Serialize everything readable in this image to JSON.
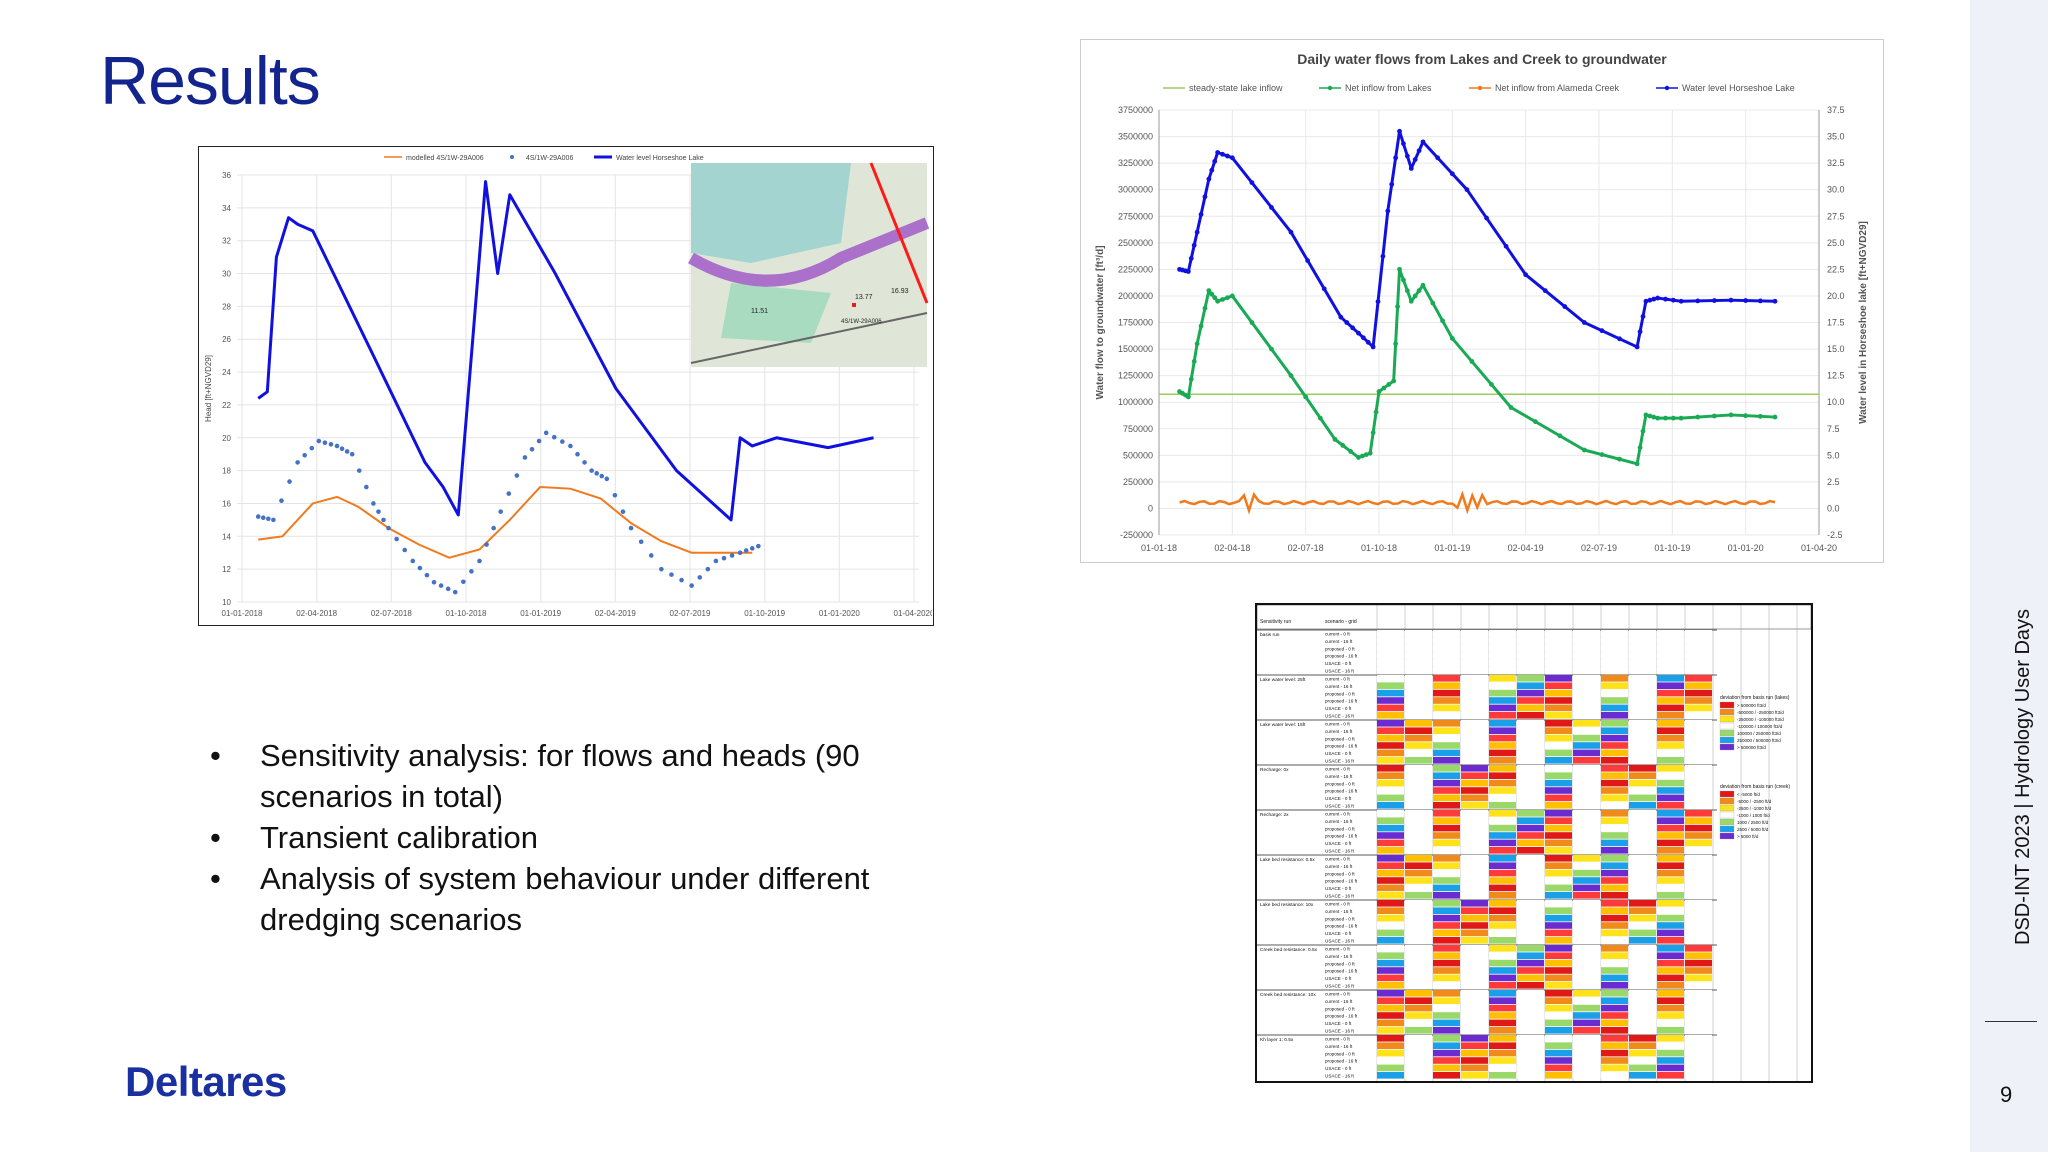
{
  "slide": {
    "title": "Results",
    "page_number": "9",
    "footer_vertical": "DSD-INT 2023 | Hydrology User Days",
    "logo": "Deltares",
    "bullets": [
      "Sensitivity analysis: for flows and heads (90 scenarios in total)",
      "Transient calibration",
      "Analysis of system behaviour under different dredging scenarios"
    ]
  },
  "colors": {
    "title": "#14248f",
    "logo": "#1a2fa0",
    "blue": "#1010e0",
    "green": "#1aaa55",
    "orange": "#f07a1e",
    "lightgreen": "#9acd5a",
    "scatter": "#4472c4"
  },
  "chart_data": [
    {
      "type": "line",
      "legend": [
        "modelled 4S/1W-29A006",
        "4S/1W-29A006",
        "Water level Horseshoe Lake"
      ],
      "ylabel": "Head [ft+NGVD29]",
      "ylim": [
        10,
        36
      ],
      "yticks": [
        "10",
        "12",
        "14",
        "16",
        "18",
        "20",
        "22",
        "24",
        "26",
        "28",
        "30",
        "32",
        "34",
        "36"
      ],
      "xticks": [
        "01-01-2018",
        "02-04-2018",
        "02-07-2018",
        "01-10-2018",
        "01-01-2019",
        "02-04-2019",
        "02-07-2019",
        "01-10-2019",
        "01-01-2020",
        "01-04-2020"
      ],
      "map_labels": [
        "13.77",
        "16.93",
        "11.51",
        "4S/1W-29A006"
      ],
      "series": [
        {
          "name": "Water level Horseshoe Lake",
          "x": [
            0.07,
            0.1,
            0.13,
            0.17,
            0.2,
            0.25,
            0.45,
            0.62,
            0.68,
            0.73,
            0.78,
            0.82,
            0.86,
            0.9,
            1.05,
            1.25,
            1.45,
            1.63,
            1.66,
            1.7,
            1.78,
            1.95,
            2.1
          ],
          "values": [
            22.4,
            22.8,
            31.0,
            33.4,
            33.0,
            32.6,
            25.0,
            18.5,
            17.0,
            15.3,
            26.5,
            35.6,
            30.0,
            34.8,
            30.0,
            23.0,
            18.0,
            15.0,
            20.0,
            19.5,
            20.0,
            19.4,
            20.0
          ]
        },
        {
          "name": "4S/1W-29A006",
          "x": [
            0.07,
            0.12,
            0.2,
            0.27,
            0.33,
            0.38,
            0.45,
            0.5,
            0.58,
            0.65,
            0.72,
            0.8,
            0.87,
            0.95,
            1.02,
            1.1,
            1.17,
            1.22,
            1.3,
            1.4,
            1.5,
            1.58,
            1.66,
            1.72
          ],
          "values": [
            15.2,
            15.0,
            18.5,
            19.8,
            19.5,
            19.0,
            16.0,
            14.5,
            12.5,
            11.2,
            10.6,
            12.5,
            15.5,
            18.8,
            20.3,
            19.5,
            18.0,
            17.5,
            14.5,
            12.0,
            11.0,
            12.5,
            13.0,
            13.4
          ]
        },
        {
          "name": "modelled 4S/1W-29A006",
          "x": [
            0.07,
            0.15,
            0.25,
            0.33,
            0.4,
            0.5,
            0.6,
            0.7,
            0.8,
            0.9,
            1.0,
            1.1,
            1.2,
            1.3,
            1.4,
            1.5,
            1.6,
            1.7
          ],
          "values": [
            13.8,
            14.0,
            16.0,
            16.4,
            15.8,
            14.5,
            13.5,
            12.7,
            13.2,
            15.0,
            17.0,
            16.9,
            16.3,
            14.8,
            13.7,
            13.0,
            13.0,
            13.0
          ]
        }
      ]
    },
    {
      "type": "line",
      "title": "Daily water flows from Lakes and Creek to groundwater",
      "legend": [
        "steady-state lake inflow",
        "Net inflow from Lakes",
        "Net inflow from Alameda Creek",
        "Water level Horseshoe Lake"
      ],
      "ylabel": "Water flow to groundwater [ft³/d]",
      "y2label": "Water level in Horseshoe lake [ft+NGVD29]",
      "ylim": [
        -250000,
        3750000
      ],
      "y2lim": [
        -2.5,
        37.5
      ],
      "yticks": [
        "-250000",
        "0",
        "250000",
        "500000",
        "750000",
        "1000000",
        "1250000",
        "1500000",
        "1750000",
        "2000000",
        "2250000",
        "2500000",
        "2750000",
        "3000000",
        "3250000",
        "3500000",
        "3750000"
      ],
      "y2ticks": [
        "-2.5",
        "0.0",
        "2.5",
        "5.0",
        "7.5",
        "10.0",
        "12.5",
        "15.0",
        "17.5",
        "20.0",
        "22.5",
        "25.0",
        "27.5",
        "30.0",
        "32.5",
        "35.0",
        "37.5"
      ],
      "xticks": [
        "01-01-18",
        "02-04-18",
        "02-07-18",
        "01-10-18",
        "01-01-19",
        "02-04-19",
        "02-07-19",
        "01-10-19",
        "01-01-20",
        "01-04-20"
      ],
      "steady_state_value": 1075000,
      "series": [
        {
          "name": "Water level Horseshoe Lake",
          "x": [
            0.07,
            0.1,
            0.13,
            0.17,
            0.2,
            0.25,
            0.45,
            0.62,
            0.68,
            0.73,
            0.78,
            0.82,
            0.86,
            0.9,
            1.05,
            1.25,
            1.45,
            1.63,
            1.66,
            1.7,
            1.78,
            1.95,
            2.1
          ],
          "values": [
            22.5,
            22.3,
            26.0,
            31.0,
            33.5,
            33.0,
            26.0,
            18.0,
            16.5,
            15.2,
            28.0,
            35.5,
            32.0,
            34.5,
            30.0,
            22.0,
            17.5,
            15.2,
            19.5,
            19.8,
            19.5,
            19.6,
            19.5
          ]
        },
        {
          "name": "Net inflow from Lakes",
          "x": [
            0.07,
            0.1,
            0.13,
            0.17,
            0.2,
            0.25,
            0.45,
            0.6,
            0.68,
            0.72,
            0.75,
            0.8,
            0.82,
            0.86,
            0.9,
            1.0,
            1.2,
            1.45,
            1.63,
            1.66,
            1.7,
            1.78,
            1.95,
            2.1
          ],
          "values": [
            1100000,
            1050000,
            1550000,
            2050000,
            1950000,
            2000000,
            1250000,
            650000,
            480000,
            520000,
            1100000,
            1200000,
            2250000,
            1950000,
            2100000,
            1600000,
            950000,
            550000,
            420000,
            880000,
            850000,
            850000,
            880000,
            860000
          ]
        },
        {
          "name": "Net inflow from Alameda Creek",
          "x": [
            0.07,
            0.5,
            1.0,
            1.5,
            2.1
          ],
          "values": [
            50000,
            55000,
            60000,
            55000,
            60000
          ]
        }
      ]
    }
  ],
  "table": {
    "header_cols": [
      "Sensitivity run",
      "scenario - grid"
    ],
    "groups": [
      "basis run",
      "Lake water level: 25ft",
      "Lake water level: 15ft",
      "Recharge: 0x",
      "Recharge: 2x",
      "Lake bed resistance: 0.5x",
      "Lake bed resistance: 10x",
      "Creek bed resistance: 0.5x",
      "Creek bed resistance: 10x",
      "Kh layer 1: 0.5x"
    ],
    "row_labels": [
      "current - 0 ft",
      "current - 16 ft",
      "proposed - 0 ft",
      "proposed - 16 ft",
      "USACE - 0 ft",
      "USACE - 16 ft"
    ],
    "legend_lakes_title": "deviation from basis run (lakes)",
    "legend_lakes": [
      "> 500000 ft3/d",
      "-500000 / -250000 ft3/d",
      "-250000 / -100000 ft3/d",
      "-100000 / 100000 ft3/d",
      "100000 / 250000 ft3/d",
      "250000 / 500000 ft3/d",
      "> 500000 ft3/d"
    ],
    "legend_creek_title": "deviation from basis run (creek)",
    "legend_creek": [
      "< -5000 ft/d",
      "-5000 / -2500 ft/d",
      "-2500 / -1000 ft/d",
      "-1000 / 1000 ft/d",
      "1000 / 2500 ft/d",
      "2500 / 5000 ft/d",
      "> 5000 ft/d"
    ]
  }
}
